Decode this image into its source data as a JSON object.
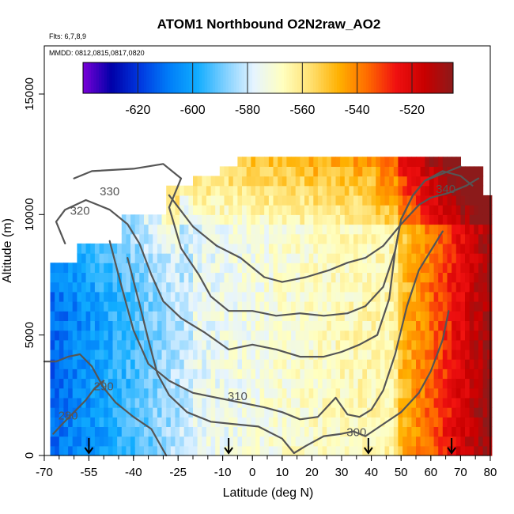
{
  "chart_data": {
    "type": "heatmap",
    "title": "ATOM1 Northbound O2N2raw_AO2",
    "subtitle_flights": "Flts: 6,7,8,9",
    "subtitle_dates": "MMDD: 0812,0815,0817,0820",
    "xlabel": "Latitude (deg N)",
    "ylabel": "Altitude (m)",
    "xlim": [
      -70,
      80
    ],
    "ylim": [
      0,
      17000
    ],
    "x_ticks": [
      -70,
      -55,
      -40,
      -25,
      -10,
      0,
      10,
      20,
      30,
      40,
      50,
      60,
      70,
      80
    ],
    "x_tick_labels": [
      "-70",
      "-55",
      "-40",
      "-25",
      "-10",
      "0",
      "10",
      "20",
      "30",
      "40",
      "50",
      "60",
      "70",
      "80"
    ],
    "y_ticks": [
      0,
      5000,
      10000,
      15000
    ],
    "y_tick_labels": [
      "0",
      "5000",
      "10000",
      "15000"
    ],
    "colorbar": {
      "range": [
        -640,
        -505
      ],
      "ticks": [
        -620,
        -600,
        -580,
        -560,
        -540,
        -520
      ],
      "tick_labels": [
        "-620",
        "-600",
        "-580",
        "-560",
        "-540",
        "-520"
      ],
      "colors": [
        "#7a00d8",
        "#0000a8",
        "#0038e0",
        "#007cf8",
        "#10acff",
        "#80d0ff",
        "#e6f4ff",
        "#ffffc0",
        "#ffe070",
        "#ffb000",
        "#ff6a00",
        "#f01010",
        "#c80000",
        "#8c1a1a"
      ]
    },
    "profile_markers_lat": [
      -55,
      -8,
      39,
      67
    ],
    "contours": [
      {
        "level": 280,
        "label": "280",
        "label_at": [
          -62,
          1500
        ],
        "points": [
          [
            -67,
            900
          ],
          [
            -64,
            1300
          ],
          [
            -60,
            1800
          ],
          [
            -56,
            2300
          ],
          [
            -53,
            2800
          ],
          [
            -50,
            3100
          ]
        ]
      },
      {
        "level": 290,
        "label": "290",
        "label_at": [
          -50,
          2700
        ],
        "points": [
          [
            -70,
            3900
          ],
          [
            -66,
            3900
          ],
          [
            -62,
            4100
          ],
          [
            -58,
            4200
          ],
          [
            -54,
            3700
          ],
          [
            -50,
            2800
          ],
          [
            -46,
            2200
          ],
          [
            -40,
            1600
          ],
          [
            -34,
            1100
          ],
          [
            -29,
            0
          ]
        ]
      },
      {
        "level": 300,
        "label": "300",
        "label_at": [
          35,
          800
        ],
        "points": [
          [
            -42,
            8200
          ],
          [
            -38,
            6300
          ],
          [
            -35,
            4800
          ],
          [
            -32,
            3400
          ],
          [
            -28,
            2500
          ],
          [
            -22,
            1800
          ],
          [
            -14,
            1400
          ],
          [
            -6,
            1300
          ],
          [
            2,
            1200
          ],
          [
            10,
            700
          ],
          [
            14,
            100
          ],
          [
            18,
            400
          ],
          [
            24,
            800
          ],
          [
            30,
            900
          ],
          [
            34,
            1000
          ],
          [
            38,
            800
          ],
          [
            44,
            1300
          ],
          [
            50,
            1800
          ],
          [
            56,
            2600
          ],
          [
            60,
            3500
          ],
          [
            64,
            4800
          ],
          [
            66,
            6000
          ]
        ]
      },
      {
        "level": 310,
        "label": "310",
        "label_at": [
          -5,
          2300
        ],
        "points": [
          [
            -48,
            8900
          ],
          [
            -44,
            7000
          ],
          [
            -40,
            5200
          ],
          [
            -35,
            3800
          ],
          [
            -28,
            3100
          ],
          [
            -20,
            2600
          ],
          [
            -12,
            2400
          ],
          [
            -4,
            2200
          ],
          [
            4,
            2000
          ],
          [
            10,
            1800
          ],
          [
            16,
            1500
          ],
          [
            22,
            1600
          ],
          [
            28,
            2400
          ],
          [
            32,
            1700
          ],
          [
            36,
            1600
          ],
          [
            40,
            1900
          ],
          [
            44,
            2700
          ],
          [
            48,
            4200
          ],
          [
            52,
            6200
          ],
          [
            56,
            7700
          ],
          [
            60,
            8500
          ],
          [
            64,
            9300
          ]
        ]
      },
      {
        "level": 320,
        "label": "320",
        "label_at": [
          -58,
          10000
        ],
        "points": [
          [
            -63,
            8800
          ],
          [
            -66,
            9700
          ],
          [
            -63,
            10200
          ],
          [
            -56,
            10600
          ],
          [
            -48,
            10200
          ],
          [
            -42,
            9600
          ],
          [
            -38,
            8800
          ],
          [
            -34,
            7500
          ],
          [
            -30,
            6400
          ],
          [
            -24,
            5700
          ],
          [
            -16,
            5100
          ],
          [
            -8,
            4400
          ],
          [
            0,
            4600
          ],
          [
            8,
            4400
          ],
          [
            16,
            4100
          ],
          [
            24,
            4100
          ],
          [
            30,
            4300
          ],
          [
            36,
            4600
          ],
          [
            42,
            5000
          ],
          [
            46,
            6500
          ],
          [
            48,
            8500
          ],
          [
            50,
            9800
          ],
          [
            54,
            10800
          ],
          [
            58,
            11400
          ],
          [
            64,
            11800
          ],
          [
            70,
            11600
          ],
          [
            74,
            11200
          ]
        ]
      },
      {
        "level": 330,
        "label": "330",
        "label_at": [
          -48,
          10800
        ],
        "points": [
          [
            -60,
            11500
          ],
          [
            -54,
            11800
          ],
          [
            -40,
            11900
          ],
          [
            -30,
            12100
          ],
          [
            -24,
            11500
          ],
          [
            -28,
            10300
          ],
          [
            -24,
            8600
          ],
          [
            -18,
            7500
          ],
          [
            -14,
            6600
          ],
          [
            -8,
            6000
          ],
          [
            0,
            6000
          ],
          [
            8,
            5800
          ],
          [
            16,
            5900
          ],
          [
            24,
            5800
          ],
          [
            32,
            5900
          ],
          [
            38,
            6200
          ],
          [
            44,
            7000
          ],
          [
            48,
            8500
          ],
          [
            50,
            9800
          ],
          [
            54,
            10800
          ],
          [
            58,
            11400
          ],
          [
            64,
            11700
          ],
          [
            70,
            12000
          ]
        ]
      },
      {
        "level": 340,
        "label": "340",
        "label_at": [
          65,
          10900
        ],
        "points": [
          [
            -28,
            10800
          ],
          [
            -20,
            9500
          ],
          [
            -12,
            8700
          ],
          [
            -4,
            8200
          ],
          [
            4,
            7400
          ],
          [
            10,
            7200
          ],
          [
            18,
            7400
          ],
          [
            26,
            7700
          ],
          [
            32,
            8000
          ],
          [
            38,
            8200
          ],
          [
            44,
            8700
          ],
          [
            50,
            9600
          ],
          [
            56,
            10400
          ],
          [
            60,
            10700
          ],
          [
            66,
            10900
          ],
          [
            72,
            11200
          ],
          [
            76,
            11500
          ]
        ]
      }
    ]
  }
}
